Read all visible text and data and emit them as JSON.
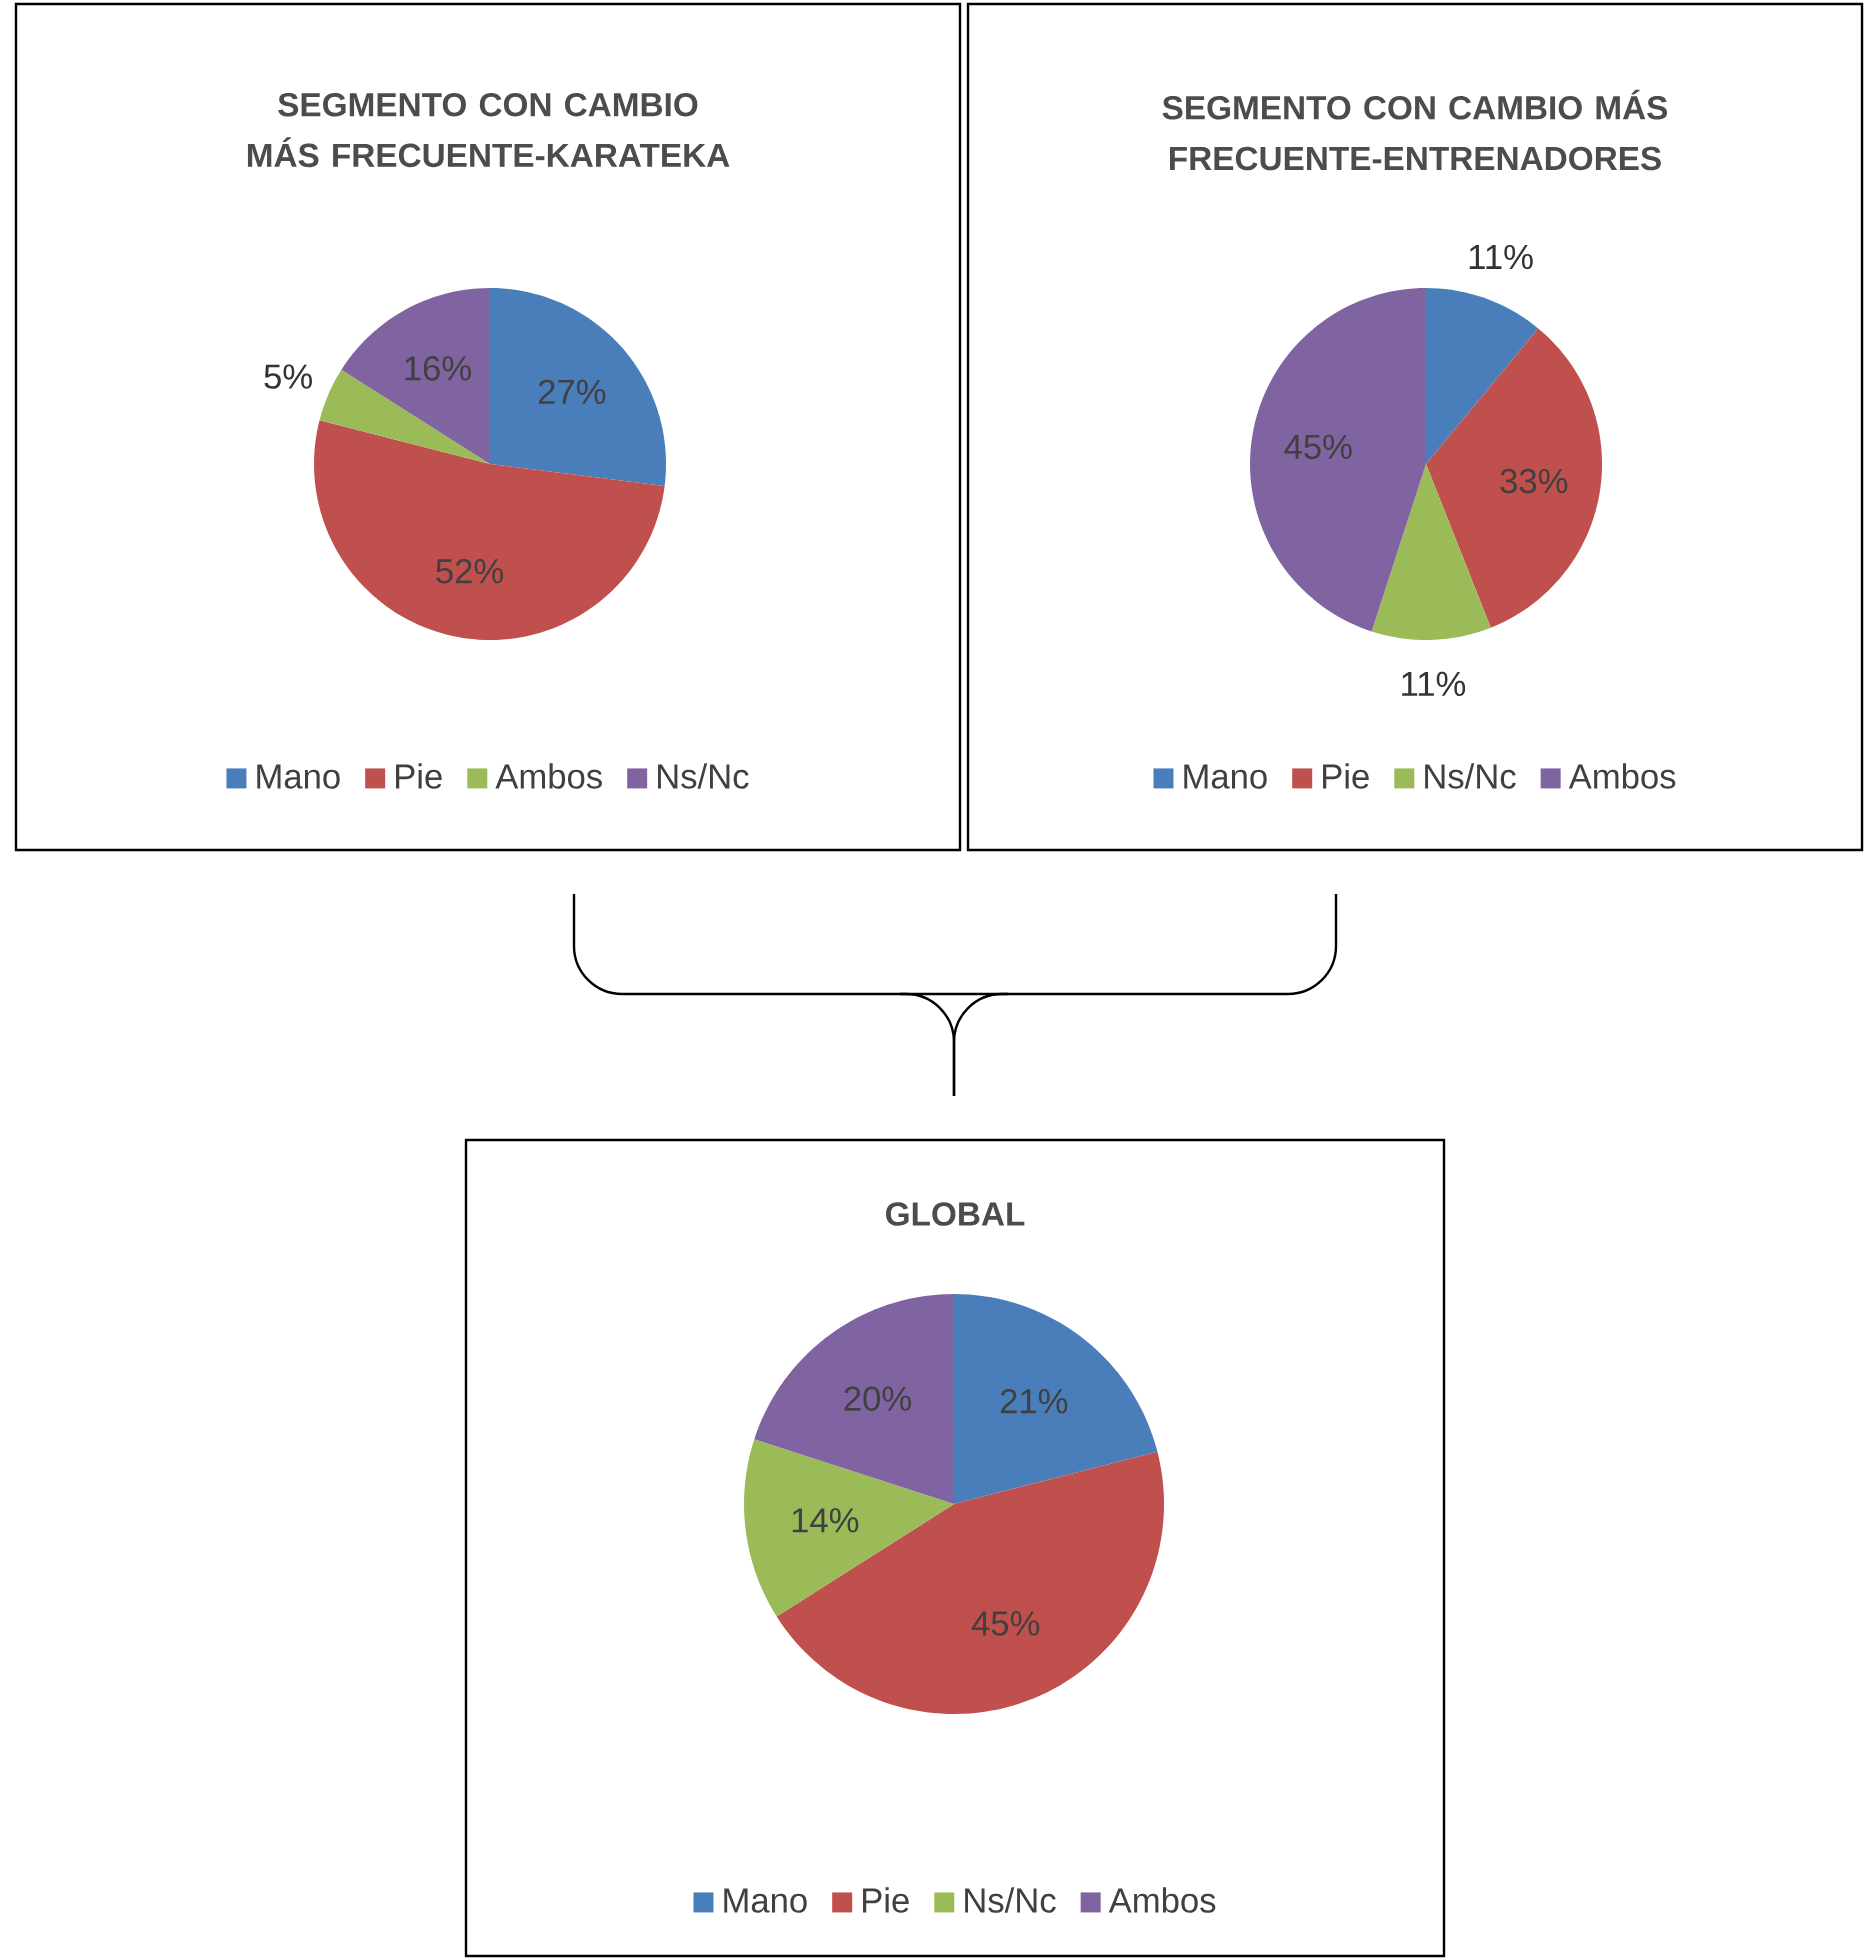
{
  "chart_data": [
    {
      "type": "pie",
      "title": "SEGMENTO CON CAMBIO MÁS FRECUENTE-KARATEKA",
      "categories": [
        "Mano",
        "Pie",
        "Ambos",
        "Ns/Nc"
      ],
      "values": [
        27,
        52,
        5,
        16
      ],
      "colors": [
        "#4a7ebb",
        "#c0504d",
        "#9bbb59",
        "#8064a2"
      ],
      "value_labels": [
        "27%",
        "52%",
        "5%",
        "16%"
      ],
      "legend": "bottom"
    },
    {
      "type": "pie",
      "title": "SEGMENTO CON CAMBIO MÁS FRECUENTE-ENTRENADORES",
      "categories": [
        "Mano",
        "Pie",
        "Ns/Nc",
        "Ambos"
      ],
      "values": [
        11,
        33,
        11,
        45
      ],
      "colors": [
        "#4a7ebb",
        "#c0504d",
        "#9bbb59",
        "#8064a2"
      ],
      "value_labels": [
        "11%",
        "33%",
        "11%",
        "45%"
      ],
      "legend": "bottom"
    },
    {
      "type": "pie",
      "title": "GLOBAL",
      "categories": [
        "Mano",
        "Pie",
        "Ns/Nc",
        "Ambos"
      ],
      "values": [
        21,
        45,
        14,
        20
      ],
      "colors": [
        "#4a7ebb",
        "#c0504d",
        "#9bbb59",
        "#8064a2"
      ],
      "value_labels": [
        "21%",
        "45%",
        "14%",
        "20%"
      ],
      "legend": "bottom"
    }
  ]
}
